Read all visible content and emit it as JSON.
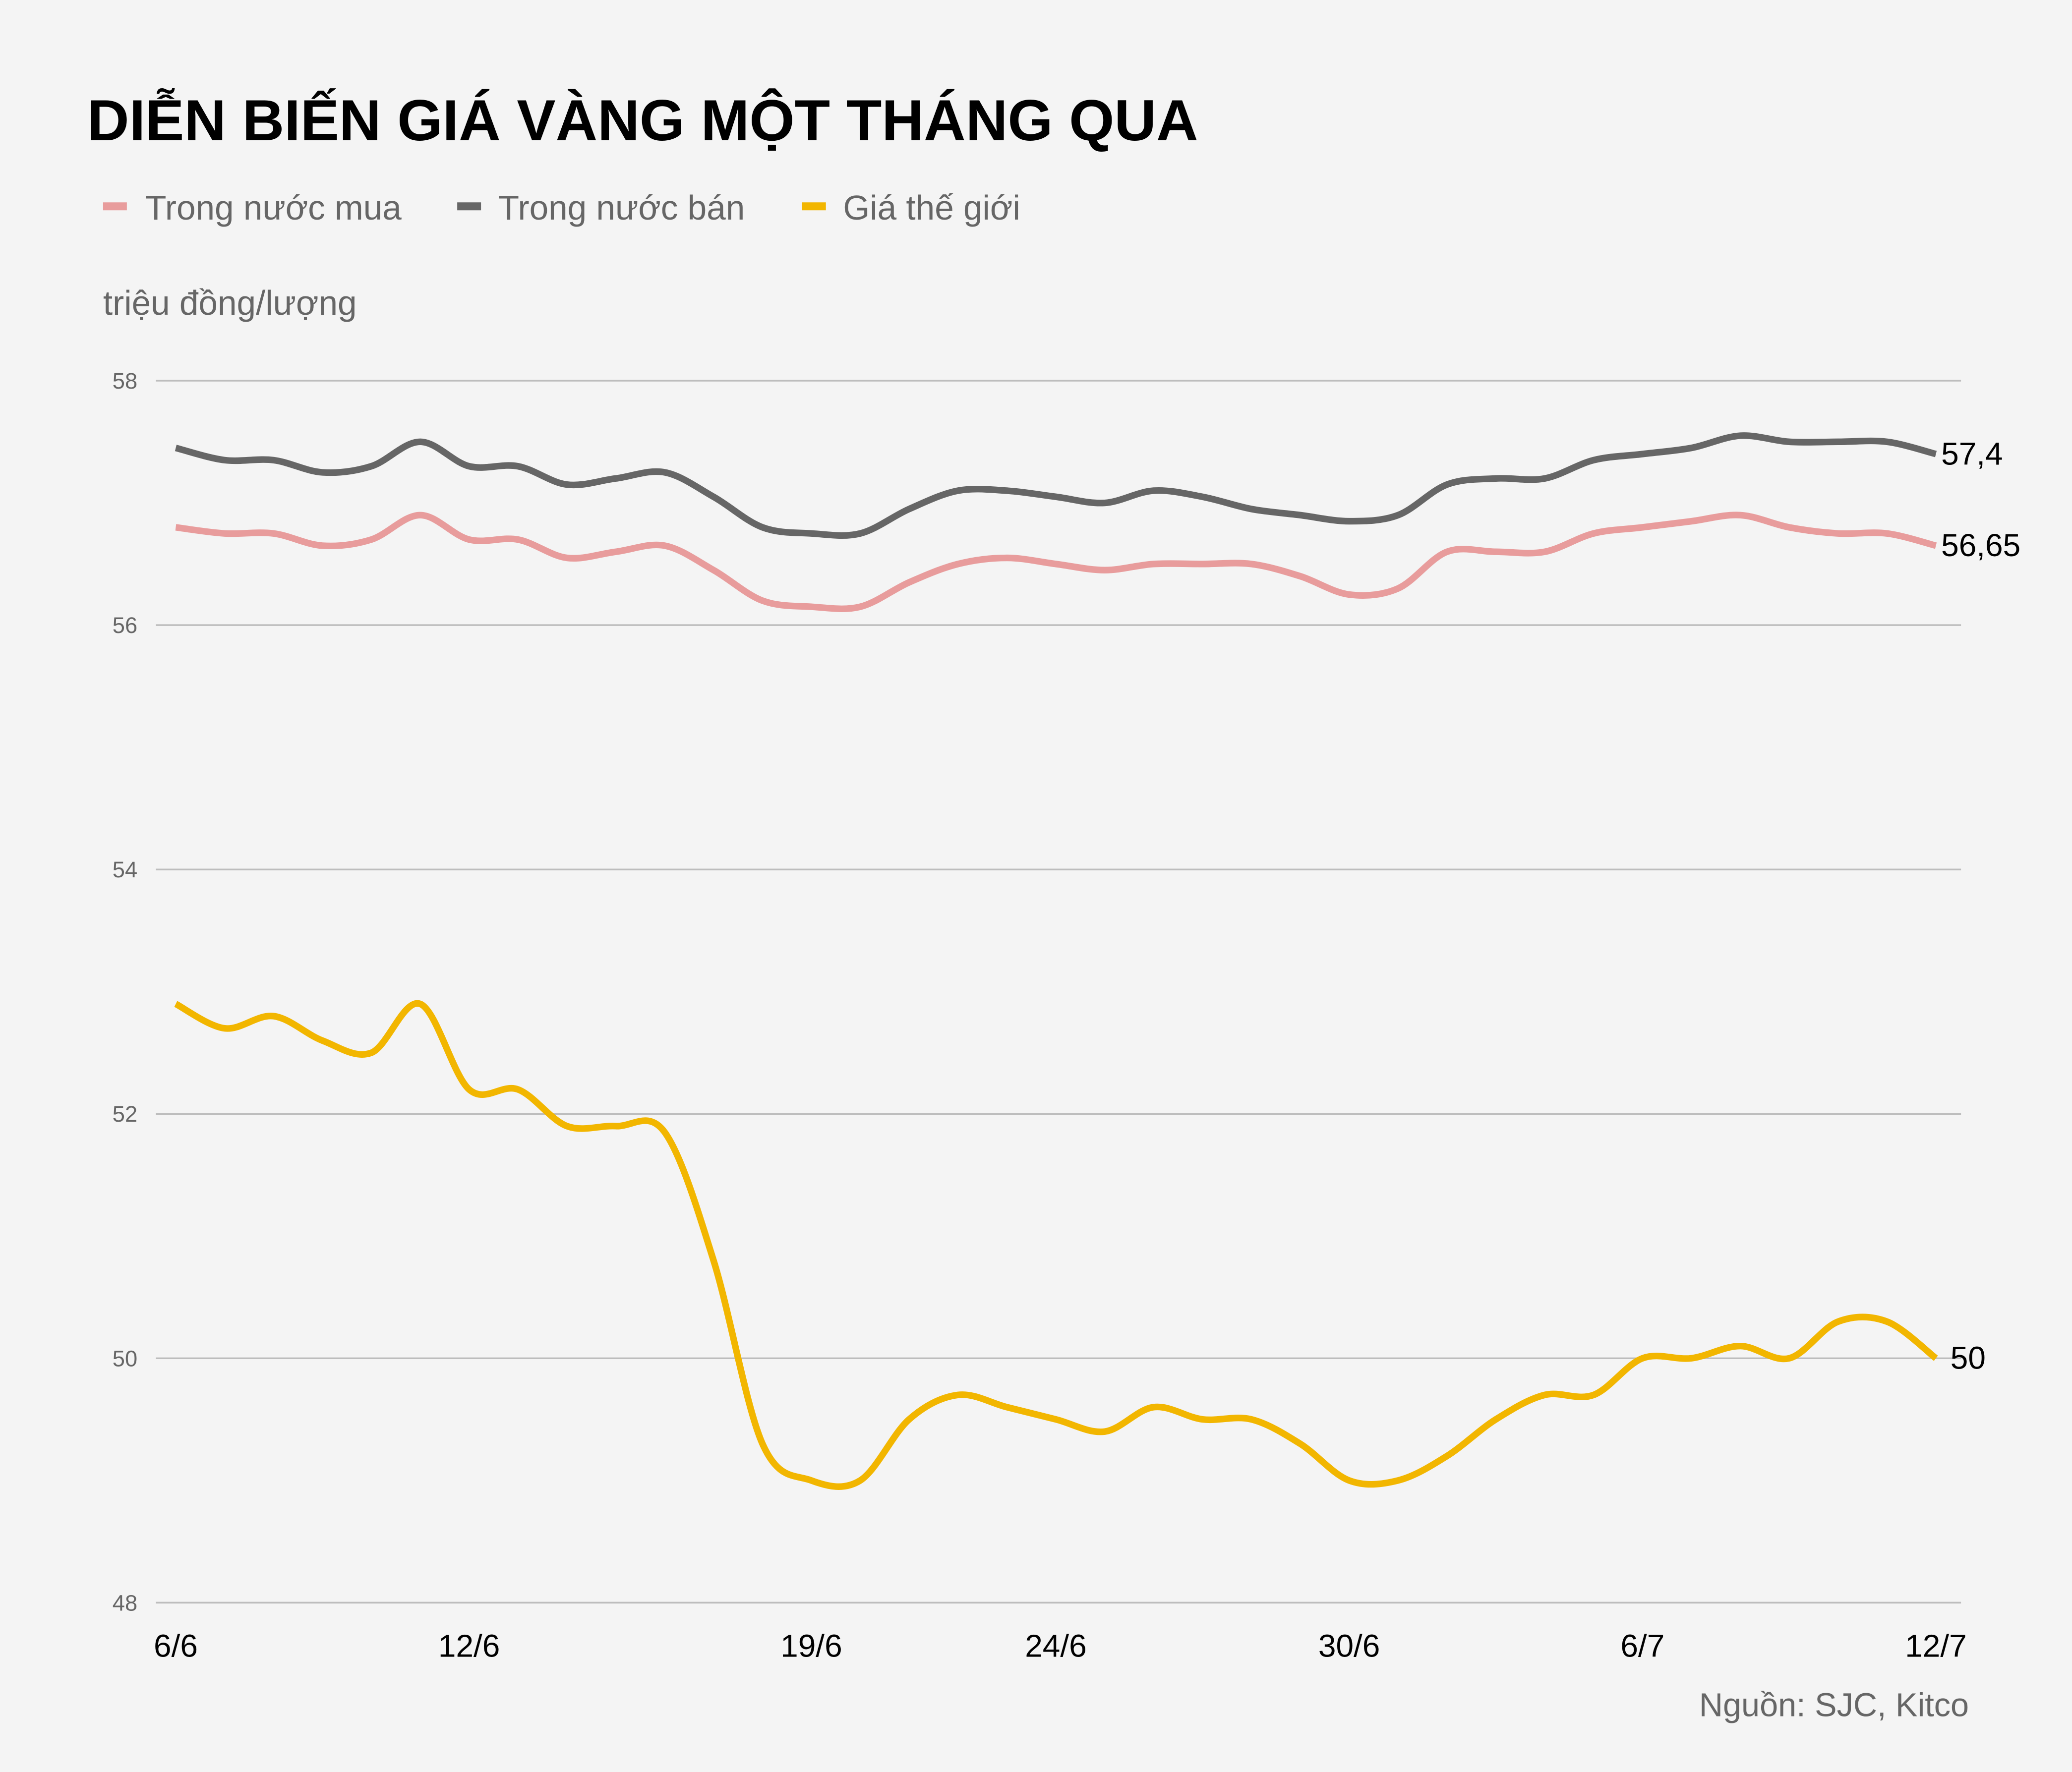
{
  "chart_data": {
    "type": "line",
    "title": "DIỄN BIẾN GIÁ VÀNG MỘT THÁNG QUA",
    "ylabel": "triệu đồng/lượng",
    "xlabel": "",
    "source": "Nguồn: SJC, Kitco",
    "ylim": [
      48,
      58
    ],
    "yticks": [
      "58",
      "56",
      "54",
      "52",
      "50",
      "48"
    ],
    "ytick_values": [
      58,
      56,
      54,
      52,
      50,
      48
    ],
    "x_dates": [
      "6/6",
      "7/6",
      "8/6",
      "9/6",
      "10/6",
      "11/6",
      "12/6",
      "13/6",
      "14/6",
      "15/6",
      "16/6",
      "17/6",
      "18/6",
      "19/6",
      "20/6",
      "21/6",
      "22/6",
      "23/6",
      "24/6",
      "25/6",
      "26/6",
      "27/6",
      "28/6",
      "29/6",
      "30/6",
      "1/7",
      "2/7",
      "3/7",
      "4/7",
      "5/7",
      "6/7",
      "7/7",
      "8/7",
      "9/7",
      "10/7",
      "11/7",
      "12/7"
    ],
    "xticks": [
      "6/6",
      "12/6",
      "19/6",
      "24/6",
      "30/6",
      "6/7",
      "12/7"
    ],
    "grid": "horizontal",
    "legend_position": "top-left",
    "series": [
      {
        "name": "Trong nước mua",
        "color": "#e89c9c",
        "end_label": "56,65",
        "values": [
          56.8,
          56.75,
          56.75,
          56.65,
          56.7,
          56.9,
          56.7,
          56.7,
          56.55,
          56.6,
          56.65,
          56.45,
          56.2,
          56.15,
          56.15,
          56.35,
          56.5,
          56.55,
          56.5,
          56.45,
          56.5,
          56.5,
          56.5,
          56.4,
          56.25,
          56.3,
          56.6,
          56.6,
          56.6,
          56.75,
          56.8,
          56.85,
          56.9,
          56.8,
          56.75,
          56.75,
          56.65
        ]
      },
      {
        "name": "Trong nước bán",
        "color": "#666666",
        "end_label": "57,4",
        "values": [
          57.45,
          57.35,
          57.35,
          57.25,
          57.3,
          57.5,
          57.3,
          57.3,
          57.15,
          57.2,
          57.25,
          57.05,
          56.8,
          56.75,
          56.75,
          56.95,
          57.1,
          57.1,
          57.05,
          57.0,
          57.1,
          57.05,
          56.95,
          56.9,
          56.85,
          56.9,
          57.15,
          57.2,
          57.2,
          57.35,
          57.4,
          57.45,
          57.55,
          57.5,
          57.5,
          57.5,
          57.4
        ]
      },
      {
        "name": "Giá thế giới",
        "color": "#f2b600",
        "end_label": "50",
        "values": [
          52.9,
          52.7,
          52.8,
          52.6,
          52.5,
          52.9,
          52.2,
          52.2,
          51.9,
          51.9,
          51.85,
          50.8,
          49.3,
          49.0,
          49.0,
          49.5,
          49.7,
          49.6,
          49.5,
          49.4,
          49.6,
          49.5,
          49.5,
          49.3,
          49.0,
          49.0,
          49.2,
          49.5,
          49.7,
          49.7,
          50.0,
          50.0,
          50.1,
          50.0,
          50.3,
          50.3,
          50.0
        ]
      }
    ]
  }
}
